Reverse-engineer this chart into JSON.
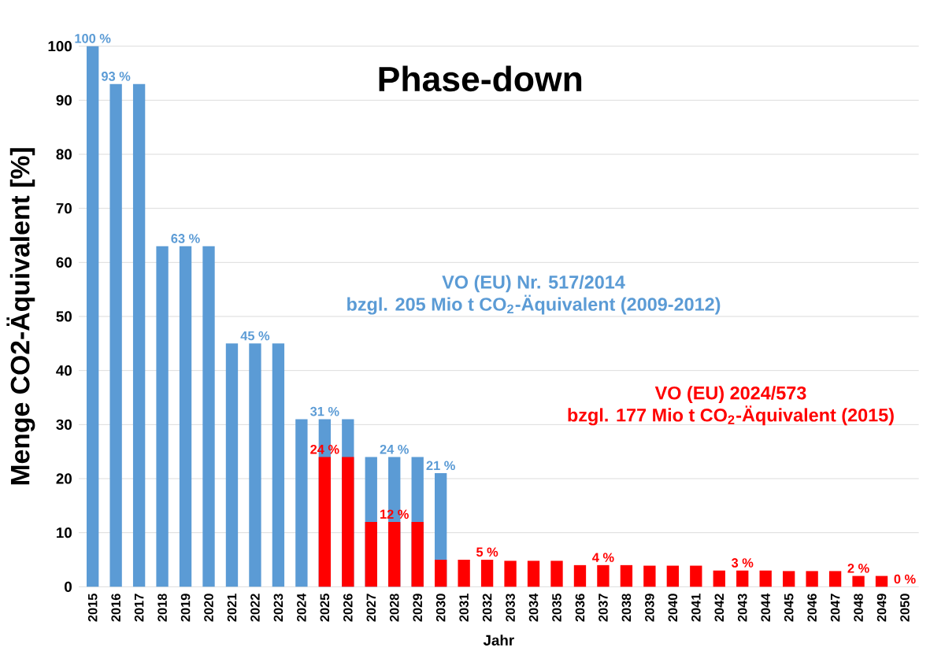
{
  "chart_data": {
    "type": "bar",
    "title": "Phase-down",
    "xlabel": "Jahr",
    "ylabel": "Menge CO2-Äquivalent [%]",
    "categories": [
      "2015",
      "2016",
      "2017",
      "2018",
      "2019",
      "2020",
      "2021",
      "2022",
      "2023",
      "2024",
      "2025",
      "2026",
      "2027",
      "2028",
      "2029",
      "2030",
      "2031",
      "2032",
      "2033",
      "2034",
      "2035",
      "2036",
      "2037",
      "2038",
      "2039",
      "2040",
      "2041",
      "2042",
      "2043",
      "2044",
      "2045",
      "2046",
      "2047",
      "2048",
      "2049",
      "2050"
    ],
    "series": [
      {
        "name": "VO (EU) Nr. 517/2014",
        "color": "#5b9bd5",
        "values": [
          100,
          93,
          93,
          63,
          63,
          63,
          45,
          45,
          45,
          31,
          31,
          31,
          24,
          24,
          24,
          21,
          null,
          null,
          null,
          null,
          null,
          null,
          null,
          null,
          null,
          null,
          null,
          null,
          null,
          null,
          null,
          null,
          null,
          null,
          null,
          null
        ],
        "value_labels": [
          "100 %",
          "93 %",
          null,
          null,
          "63 %",
          null,
          null,
          "45 %",
          null,
          null,
          "31 %",
          null,
          null,
          "24 %",
          null,
          "21 %",
          null,
          null,
          null,
          null,
          null,
          null,
          null,
          null,
          null,
          null,
          null,
          null,
          null,
          null,
          null,
          null,
          null,
          null,
          null,
          null
        ]
      },
      {
        "name": "VO (EU) 2024/573",
        "color": "#ff0000",
        "values": [
          null,
          null,
          null,
          null,
          null,
          null,
          null,
          null,
          null,
          null,
          24,
          24,
          12,
          12,
          12,
          5,
          5,
          5,
          4.8,
          4.8,
          4.8,
          4,
          4,
          4,
          3.9,
          3.9,
          3.9,
          3,
          3,
          3,
          2.9,
          2.9,
          2.9,
          2,
          2,
          0
        ],
        "value_labels": [
          null,
          null,
          null,
          null,
          null,
          null,
          null,
          null,
          null,
          null,
          "24 %",
          null,
          null,
          "12 %",
          null,
          null,
          null,
          "5 %",
          null,
          null,
          null,
          null,
          "4 %",
          null,
          null,
          null,
          null,
          null,
          "3 %",
          null,
          null,
          null,
          null,
          "2 %",
          null,
          "0 %"
        ]
      }
    ],
    "annotations": [
      "bzgl. 205 Mio t CO$_{2}$-Äquivalent (2009-2012)",
      "bzgl. 177 Mio t CO$_{2}$-Äquivalent (2015)"
    ],
    "ylim": [
      0,
      100
    ],
    "yticks": [
      0,
      10,
      20,
      30,
      40,
      50,
      60,
      70,
      80,
      90,
      100
    ],
    "grid": "y"
  }
}
